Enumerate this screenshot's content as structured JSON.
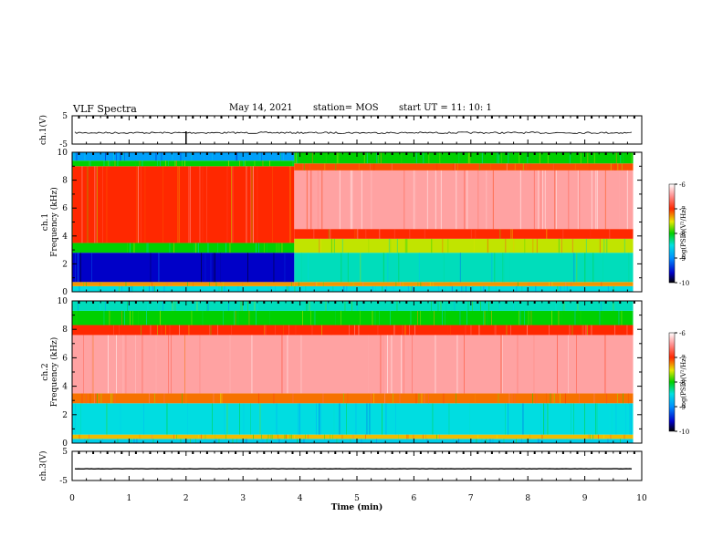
{
  "header": {
    "title": "VLF Spectra",
    "date": "May 14, 2021",
    "station": "station= MOS",
    "start": "start  UT =   11: 10: 1"
  },
  "chart_data": [
    {
      "type": "line",
      "name": "ch1-waveform",
      "ylabel": "ch.1(V)",
      "ylim": [
        -5,
        5
      ],
      "yticks": [
        "5",
        "-5"
      ],
      "xlim": [
        0,
        10
      ],
      "approx_level": -1,
      "grid": false
    },
    {
      "type": "heatmap",
      "name": "ch1-spectrogram",
      "ylabel_line1": "ch.1",
      "ylabel_line2": "Frequency (kHz)",
      "xlim": [
        0,
        10
      ],
      "ylim": [
        0,
        10
      ],
      "yticks": [
        "0",
        "2",
        "4",
        "6",
        "8",
        "10"
      ],
      "colorbar": {
        "label": "log(PSD)(V²/Hz)",
        "range": [
          -10,
          -6
        ],
        "ticks": [
          "-6",
          "-7",
          "-8",
          "-9",
          "-10"
        ]
      },
      "segments": [
        {
          "t_start": 0,
          "t_end": 3.9,
          "bands": [
            {
              "f_low": 0,
              "f_high": 0.4,
              "level": -8.5
            },
            {
              "f_low": 0.4,
              "f_high": 0.7,
              "level": -7.3
            },
            {
              "f_low": 0.7,
              "f_high": 2.8,
              "level": -9.6
            },
            {
              "f_low": 2.8,
              "f_high": 3.5,
              "level": -8.0
            },
            {
              "f_low": 3.5,
              "f_high": 9.0,
              "level": -7.0
            },
            {
              "f_low": 9.0,
              "f_high": 9.4,
              "level": -8.0
            },
            {
              "f_low": 9.4,
              "f_high": 10.0,
              "level": -8.9
            }
          ]
        },
        {
          "t_start": 3.9,
          "t_end": 9.85,
          "bands": [
            {
              "f_low": 0,
              "f_high": 0.4,
              "level": -8.5
            },
            {
              "f_low": 0.4,
              "f_high": 0.7,
              "level": -7.3
            },
            {
              "f_low": 0.7,
              "f_high": 2.8,
              "level": -8.4
            },
            {
              "f_low": 2.8,
              "f_high": 3.8,
              "level": -7.6
            },
            {
              "f_low": 3.8,
              "f_high": 4.5,
              "level": -7.0
            },
            {
              "f_low": 4.5,
              "f_high": 8.7,
              "level": -6.4
            },
            {
              "f_low": 8.7,
              "f_high": 9.2,
              "level": -7.1
            },
            {
              "f_low": 9.2,
              "f_high": 10.0,
              "level": -8.0
            }
          ]
        }
      ]
    },
    {
      "type": "heatmap",
      "name": "ch2-spectrogram",
      "ylabel_line1": "ch.2",
      "ylabel_line2": "Frequency (kHz)",
      "xlim": [
        0,
        10
      ],
      "ylim": [
        0,
        10
      ],
      "yticks": [
        "0",
        "2",
        "4",
        "6",
        "8",
        "10"
      ],
      "colorbar": {
        "label": "log(PSD)(V²/Hz)",
        "range": [
          -10,
          -6
        ],
        "ticks": [
          "-6",
          "-7",
          "-8",
          "-9",
          "-10"
        ]
      },
      "segments": [
        {
          "t_start": 0,
          "t_end": 9.85,
          "bands": [
            {
              "f_low": 0,
              "f_high": 0.3,
              "level": -8.6
            },
            {
              "f_low": 0.3,
              "f_high": 0.6,
              "level": -7.4
            },
            {
              "f_low": 0.6,
              "f_high": 2.8,
              "level": -8.5
            },
            {
              "f_low": 2.8,
              "f_high": 3.5,
              "level": -7.2
            },
            {
              "f_low": 3.5,
              "f_high": 7.6,
              "level": -6.4
            },
            {
              "f_low": 7.6,
              "f_high": 8.3,
              "level": -7.0
            },
            {
              "f_low": 8.3,
              "f_high": 9.3,
              "level": -8.0
            },
            {
              "f_low": 9.3,
              "f_high": 10.0,
              "level": -8.4
            }
          ]
        }
      ]
    },
    {
      "type": "line",
      "name": "ch3-waveform",
      "ylabel": "ch.3(V)",
      "ylim": [
        -5,
        5
      ],
      "yticks": [
        "5",
        "-5"
      ],
      "xlim": [
        0,
        10
      ],
      "xlabel": "Time (min)",
      "xticks": [
        "0",
        "1",
        "2",
        "3",
        "4",
        "5",
        "6",
        "7",
        "8",
        "9",
        "10"
      ],
      "approx_level": -1,
      "grid": false
    }
  ]
}
